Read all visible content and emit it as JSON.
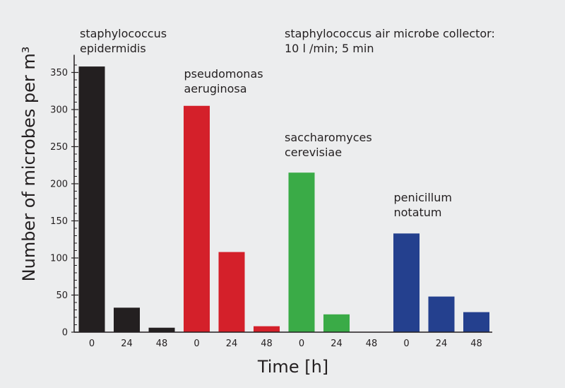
{
  "chart_data": {
    "type": "bar",
    "xlabel": "Time [h]",
    "ylabel": "Number of microbes per m³",
    "ylim": [
      0,
      370
    ],
    "yticks": [
      0,
      50,
      100,
      150,
      200,
      250,
      300,
      350
    ],
    "grid": false,
    "legend": "none",
    "annotation": [
      "staphylococcus air microbe collector:",
      "10 l /min; 5 min"
    ],
    "series": [
      {
        "name_lines": [
          "staphylococcus",
          "epidermidis"
        ],
        "color": "#231f20",
        "x": [
          "0",
          "24",
          "48"
        ],
        "values": [
          358,
          33,
          6
        ]
      },
      {
        "name_lines": [
          "pseudomonas",
          "aeruginosa"
        ],
        "color": "#d4202a",
        "x": [
          "0",
          "24",
          "48"
        ],
        "values": [
          305,
          108,
          8
        ]
      },
      {
        "name_lines": [
          "saccharomyces",
          "cerevisiae"
        ],
        "color": "#3aab47",
        "x": [
          "0",
          "24",
          "48"
        ],
        "values": [
          215,
          24,
          0
        ]
      },
      {
        "name_lines": [
          "penicillum",
          "notatum"
        ],
        "color": "#24408e",
        "x": [
          "0",
          "24",
          "48"
        ],
        "values": [
          133,
          48,
          27
        ]
      }
    ]
  }
}
